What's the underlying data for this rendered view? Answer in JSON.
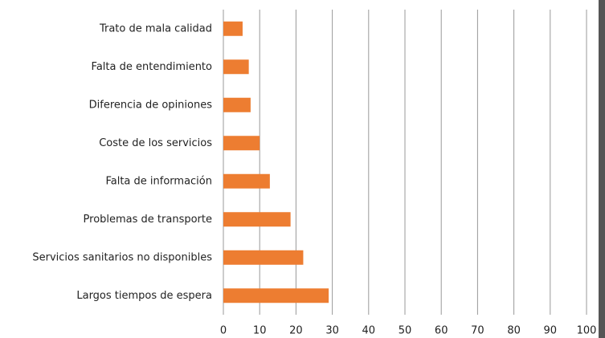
{
  "chart_data": {
    "type": "barh",
    "categories": [
      "Trato de mala calidad",
      "Falta de entendimiento",
      "Diferencia de opiniones",
      "Coste de los servicios",
      "Falta de información",
      "Problemas de transporte",
      "Servicios sanitarios no disponibles",
      "Largos tiempos de espera"
    ],
    "values": [
      5.3,
      7,
      7.5,
      10,
      12.8,
      18.5,
      22,
      29
    ],
    "color": "#ed7d31",
    "xlim": [
      0,
      100
    ],
    "xticks": [
      0,
      10,
      20,
      30,
      40,
      50,
      60,
      70,
      80,
      90,
      100
    ],
    "grid": true
  }
}
